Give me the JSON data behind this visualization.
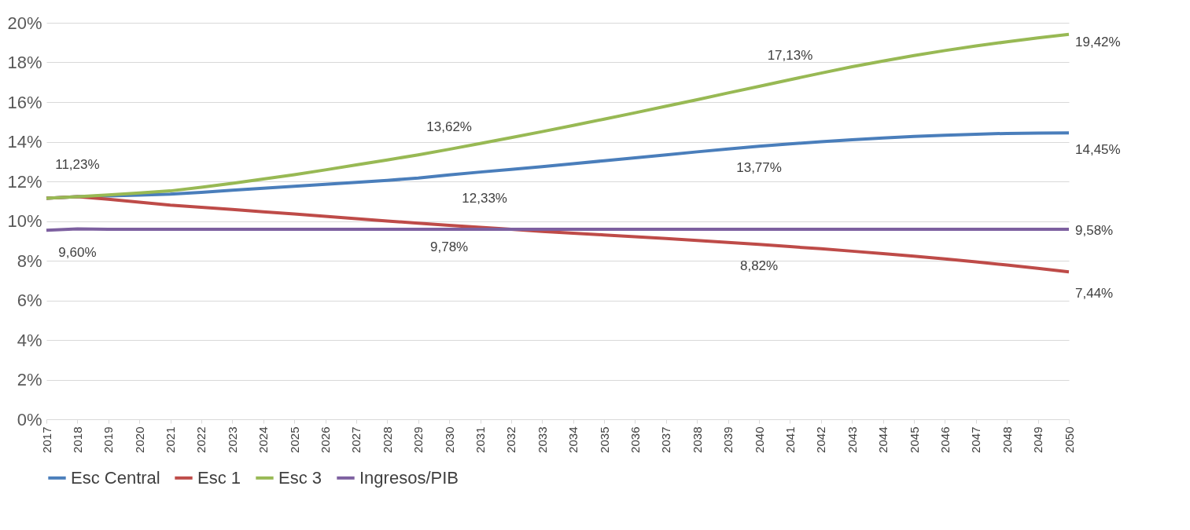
{
  "chart_data": {
    "type": "line",
    "categories": [
      "2017",
      "2018",
      "2019",
      "2020",
      "2021",
      "2022",
      "2023",
      "2024",
      "2025",
      "2026",
      "2027",
      "2028",
      "2029",
      "2030",
      "2031",
      "2032",
      "2033",
      "2034",
      "2035",
      "2036",
      "2037",
      "2038",
      "2039",
      "2040",
      "2041",
      "2042",
      "2043",
      "2044",
      "2045",
      "2046",
      "2047",
      "2048",
      "2049",
      "2050"
    ],
    "series": [
      {
        "name": "Esc Central",
        "color": "#4a7ebb",
        "values": [
          11.15,
          11.23,
          11.27,
          11.31,
          11.36,
          11.45,
          11.55,
          11.65,
          11.75,
          11.85,
          11.95,
          12.05,
          12.17,
          12.33,
          12.47,
          12.6,
          12.74,
          12.89,
          13.04,
          13.19,
          13.34,
          13.49,
          13.63,
          13.77,
          13.89,
          14.0,
          14.1,
          14.19,
          14.27,
          14.33,
          14.38,
          14.42,
          14.44,
          14.45
        ],
        "value_labels": [
          null,
          "11,23%",
          null,
          null,
          null,
          null,
          null,
          null,
          null,
          null,
          null,
          null,
          null,
          "12,33%",
          null,
          null,
          null,
          null,
          null,
          null,
          null,
          null,
          null,
          "13,77%",
          null,
          null,
          null,
          null,
          null,
          null,
          null,
          null,
          null,
          "14,45%"
        ]
      },
      {
        "name": "Esc 1",
        "color": "#be4b48",
        "values": [
          11.15,
          11.23,
          11.1,
          10.95,
          10.8,
          10.69,
          10.58,
          10.47,
          10.36,
          10.24,
          10.12,
          10.0,
          9.89,
          9.78,
          9.68,
          9.58,
          9.48,
          9.39,
          9.3,
          9.21,
          9.12,
          9.02,
          8.92,
          8.82,
          8.71,
          8.6,
          8.48,
          8.36,
          8.23,
          8.09,
          7.94,
          7.78,
          7.61,
          7.44
        ],
        "value_labels": [
          null,
          null,
          null,
          null,
          null,
          null,
          null,
          null,
          null,
          null,
          null,
          null,
          null,
          "9,78%",
          null,
          null,
          null,
          null,
          null,
          null,
          null,
          null,
          null,
          "8,82%",
          null,
          null,
          null,
          null,
          null,
          null,
          null,
          null,
          null,
          "7,44%"
        ]
      },
      {
        "name": "Esc 3",
        "color": "#98b954",
        "values": [
          11.15,
          11.23,
          11.32,
          11.42,
          11.52,
          11.7,
          11.9,
          12.12,
          12.34,
          12.58,
          12.83,
          13.08,
          13.34,
          13.62,
          13.91,
          14.21,
          14.51,
          14.82,
          15.14,
          15.46,
          15.79,
          16.12,
          16.46,
          16.79,
          17.13,
          17.46,
          17.78,
          18.07,
          18.35,
          18.6,
          18.83,
          19.04,
          19.24,
          19.42
        ],
        "value_labels": [
          null,
          null,
          null,
          null,
          null,
          null,
          null,
          null,
          null,
          null,
          null,
          null,
          null,
          "13,62%",
          null,
          null,
          null,
          null,
          null,
          null,
          null,
          null,
          null,
          null,
          "17,13%",
          null,
          null,
          null,
          null,
          null,
          null,
          null,
          null,
          "19,42%"
        ]
      },
      {
        "name": "Ingresos/PIB",
        "color": "#7d60a0",
        "values": [
          9.53,
          9.6,
          9.58,
          9.58,
          9.58,
          9.58,
          9.58,
          9.58,
          9.58,
          9.58,
          9.58,
          9.58,
          9.58,
          9.58,
          9.58,
          9.58,
          9.58,
          9.58,
          9.58,
          9.58,
          9.58,
          9.58,
          9.58,
          9.58,
          9.58,
          9.58,
          9.58,
          9.58,
          9.58,
          9.58,
          9.58,
          9.58,
          9.58,
          9.58
        ],
        "value_labels": [
          null,
          "9,60%",
          null,
          null,
          null,
          null,
          null,
          null,
          null,
          null,
          null,
          null,
          null,
          null,
          null,
          null,
          null,
          null,
          null,
          null,
          null,
          null,
          null,
          null,
          null,
          null,
          null,
          null,
          null,
          null,
          null,
          null,
          null,
          "9,58%"
        ]
      }
    ],
    "ylim": [
      0,
      20
    ],
    "yticks": [
      {
        "value": 0,
        "label": "0%"
      },
      {
        "value": 2,
        "label": "2%"
      },
      {
        "value": 4,
        "label": "4%"
      },
      {
        "value": 6,
        "label": "6%"
      },
      {
        "value": 8,
        "label": "8%"
      },
      {
        "value": 10,
        "label": "10%"
      },
      {
        "value": 12,
        "label": "12%"
      },
      {
        "value": 14,
        "label": "14%"
      },
      {
        "value": 16,
        "label": "16%"
      },
      {
        "value": 18,
        "label": "18%"
      },
      {
        "value": 20,
        "label": "20%"
      }
    ],
    "grid": "y",
    "legend": "bottom",
    "line_style": "solid",
    "marker": "none"
  }
}
